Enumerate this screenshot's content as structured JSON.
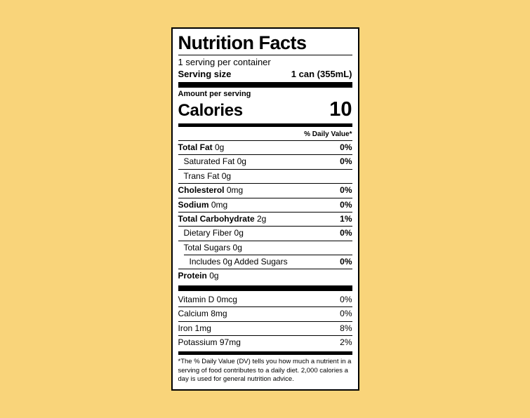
{
  "colors": {
    "page_background": "#F9D47A",
    "label_background": "#FFFFFF",
    "label_text": "#000000",
    "divider": "#000000"
  },
  "label": {
    "title": "Nutrition Facts",
    "servings_per_container": "1 serving per container",
    "serving_size": {
      "label": "Serving size",
      "value": "1 can (355mL)"
    },
    "amount_per_serving": "Amount per serving",
    "calories": {
      "label": "Calories",
      "value": "10"
    },
    "daily_value_header": "% Daily Value*",
    "rows": [
      {
        "name": "Total Fat",
        "amount": "0g",
        "dv": "0%"
      },
      {
        "name": "Saturated Fat",
        "amount": "0g",
        "dv": "0%"
      },
      {
        "name": "Trans Fat",
        "amount": "0g",
        "dv": ""
      },
      {
        "name": "Cholesterol",
        "amount": "0mg",
        "dv": "0%"
      },
      {
        "name": "Sodium",
        "amount": "0mg",
        "dv": "0%"
      },
      {
        "name": "Total Carbohydrate",
        "amount": "2g",
        "dv": "1%"
      },
      {
        "name": "Dietary Fiber",
        "amount": "0g",
        "dv": "0%"
      },
      {
        "name": "Total Sugars",
        "amount": "0g",
        "dv": ""
      },
      {
        "name": "Includes 0g Added Sugars",
        "amount": "",
        "dv": "0%"
      },
      {
        "name": "Protein",
        "amount": "0g",
        "dv": ""
      }
    ],
    "micronutrients": [
      {
        "name": "Vitamin D",
        "amount": "0mcg",
        "dv": "0%"
      },
      {
        "name": "Calcium",
        "amount": "8mg",
        "dv": "0%"
      },
      {
        "name": "Iron",
        "amount": "1mg",
        "dv": "8%"
      },
      {
        "name": "Potassium",
        "amount": "97mg",
        "dv": "2%"
      }
    ],
    "footnote": "*The % Daily Value (DV) tells you how much a nutrient in a serving of food contributes to a daily diet. 2,000 calories a day is used for general nutrition advice."
  }
}
